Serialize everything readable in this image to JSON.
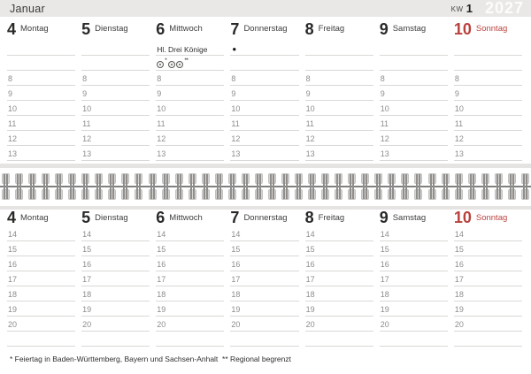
{
  "calendar": {
    "month": "Januar",
    "week_label": "KW",
    "week_number": "1",
    "year": "2027",
    "days": [
      {
        "number": "4",
        "name": "Montag",
        "sunday": false
      },
      {
        "number": "5",
        "name": "Dienstag",
        "sunday": false
      },
      {
        "number": "6",
        "name": "Mittwoch",
        "sunday": false
      },
      {
        "number": "7",
        "name": "Donnerstag",
        "sunday": false
      },
      {
        "number": "8",
        "name": "Freitag",
        "sunday": false
      },
      {
        "number": "9",
        "name": "Samstag",
        "sunday": false
      },
      {
        "number": "10",
        "name": "Sonntag",
        "sunday": true
      }
    ],
    "top_grid": {
      "pre_rows": 2,
      "hours": [
        "8",
        "9",
        "10",
        "11",
        "12",
        "13"
      ],
      "trailing_blank_row": false
    },
    "bottom_grid": {
      "pre_rows": 0,
      "hours": [
        "14",
        "15",
        "16",
        "17",
        "18",
        "19",
        "20"
      ],
      "trailing_blank_row": true
    },
    "events": [
      {
        "half": "top",
        "day_index": 2,
        "row": 0,
        "type": "text",
        "text": "Hl. Drei Könige",
        "name": "holiday-label"
      },
      {
        "half": "top",
        "day_index": 2,
        "row": 1,
        "type": "icons",
        "name": "holiday-region-icons",
        "icons": [
          {
            "sup": "*"
          },
          {
            "sup": ""
          },
          {
            "sup": "**"
          }
        ]
      },
      {
        "half": "top",
        "day_index": 3,
        "row": 0,
        "type": "symbol",
        "text": "●",
        "name": "moon-phase-dot"
      }
    ],
    "footnote": "* Feiertag in Baden-Württemberg, Bayern und Sachsen-Anhalt  ** Regional begrenzt",
    "binding_staple_count": 40,
    "colors": {
      "header_bar": "#e9e8e6",
      "sunday_red": "#b9423d",
      "year_text": "#fcfcfb",
      "rule_line": "#d9d8d6"
    }
  }
}
